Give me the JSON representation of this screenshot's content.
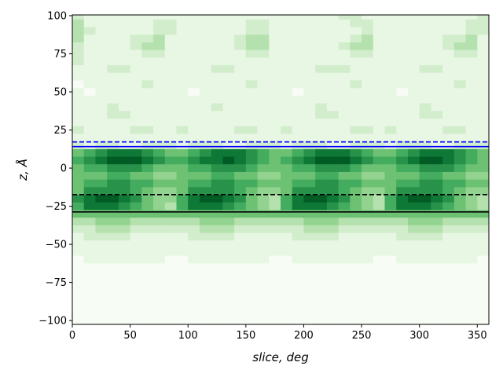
{
  "chart_data": {
    "type": "heatmap",
    "colormap": "Greens",
    "xlabel": "slice, deg",
    "ylabel": "z, Å",
    "xlim": [
      0,
      360
    ],
    "ylim": [
      -102.5,
      100.5
    ],
    "x_ticks": [
      0,
      50,
      100,
      150,
      200,
      250,
      300,
      350
    ],
    "y_ticks": [
      -100,
      -75,
      -50,
      -25,
      0,
      25,
      50,
      75,
      100
    ],
    "x_bin_width": 10,
    "y_bin_width": 5,
    "x": [
      5,
      15,
      25,
      35,
      45,
      55,
      65,
      75,
      85,
      95,
      105,
      115,
      125,
      135,
      145,
      155,
      165,
      175,
      185,
      195,
      205,
      215,
      225,
      235,
      245,
      255,
      265,
      275,
      285,
      295,
      305,
      315,
      325,
      335,
      345,
      355
    ],
    "y": [
      100,
      95,
      90,
      85,
      80,
      75,
      70,
      65,
      60,
      55,
      50,
      45,
      40,
      35,
      30,
      25,
      20,
      15,
      10,
      5,
      0,
      -5,
      -10,
      -15,
      -20,
      -25,
      -30,
      -35,
      -40,
      -45,
      -50,
      -55,
      -60,
      -65,
      -70,
      -75,
      -80,
      -85,
      -90,
      -95,
      -100
    ],
    "value_scale": [
      0,
      9
    ],
    "rows": [
      "211111111111111111111112211111111112",
      "311111122111111221111111221111111122",
      "321111122111111221111111121111111122",
      "311112231111112331111111231111112231",
      "211112331111112331111112331111112331",
      "211111221111111221111111221111111221",
      "211111111111111111111111111111111111",
      "111221111111221111111222111111221111",
      "111111111111111111111111111111111111",
      "011111211111111211111111211111111211",
      "101111111101111111101111111101111111",
      "111111111111111111111111111111111111",
      "111211111111211111111211111111211111",
      "111221111111111111111221111111221111",
      "111111111111111111111111111111111111",
      "211112211211112211211111221211112211",
      "111111111111111111111111111111111111",
      "212211222122211222122211222122211222",
      "567888765567888765567888765567888765",
      "678999876678898765678999876678998765",
      "566777655566777655566777655566777655",
      "555665544555665544555665544555665544",
      "566776655566776655566776655566776655",
      "577776544577776544577776544577776544",
      "789987544689987543689987543689987543",
      "688876543688876543688876543688876543",
      "555555555555555555555555555555555555",
      "334443333334443333334443333334443333",
      "223332222223332222223332222223332222",
      "122221111122221111122221111122221111",
      "111111111111111111111111111111111111",
      "111111111111111111111111111111111111",
      "011111110011111110011111110011111110",
      "000000000000000000000000000000000000",
      "000000000000000000000000000000000000",
      "000000000000000000000000000000000000",
      "000000000000000000000000000000000000",
      "000000000000000000000000000000000000",
      "000000000000000000000000000000000000",
      "000000000000000000000000000000000000",
      "000000000000000000000000000000000000"
    ],
    "hlines": [
      {
        "y": 17.2,
        "color": "#0000ff",
        "style": "dashed"
      },
      {
        "y": 14.1,
        "color": "#0000ff",
        "style": "solid"
      },
      {
        "y": -17.4,
        "color": "#000000",
        "style": "dashed"
      },
      {
        "y": -28.7,
        "color": "#000000",
        "style": "solid"
      }
    ]
  }
}
